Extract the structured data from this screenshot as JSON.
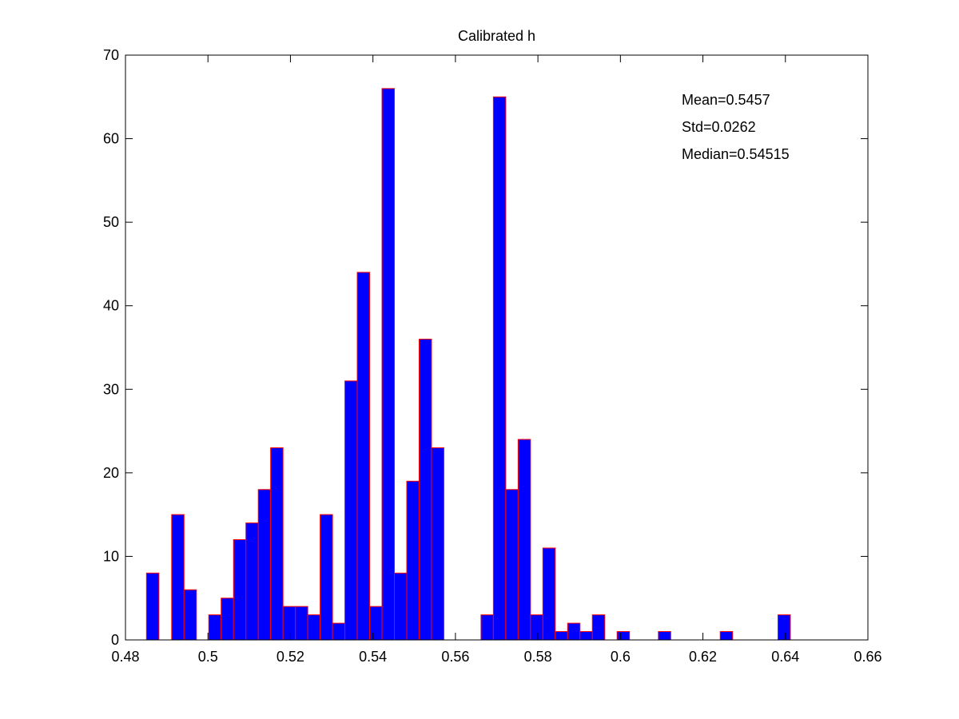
{
  "chart_data": {
    "type": "bar",
    "title": "Calibrated h",
    "xlabel": "",
    "ylabel": "",
    "xlim": [
      0.48,
      0.66
    ],
    "ylim": [
      0,
      70
    ],
    "x_ticks": [
      "0.48",
      "0.5",
      "0.52",
      "0.54",
      "0.56",
      "0.58",
      "0.6",
      "0.62",
      "0.64",
      "0.66"
    ],
    "y_ticks": [
      "0",
      "10",
      "20",
      "30",
      "40",
      "50",
      "60",
      "70"
    ],
    "grid": false,
    "bin_width": 0.003,
    "bins": [
      {
        "x": 0.4866,
        "count": 8
      },
      {
        "x": 0.4927,
        "count": 15
      },
      {
        "x": 0.4957,
        "count": 6
      },
      {
        "x": 0.5017,
        "count": 3
      },
      {
        "x": 0.5047,
        "count": 5
      },
      {
        "x": 0.5077,
        "count": 12
      },
      {
        "x": 0.5107,
        "count": 14
      },
      {
        "x": 0.5137,
        "count": 18
      },
      {
        "x": 0.5167,
        "count": 23
      },
      {
        "x": 0.5197,
        "count": 4
      },
      {
        "x": 0.5227,
        "count": 4
      },
      {
        "x": 0.5257,
        "count": 3
      },
      {
        "x": 0.5287,
        "count": 15
      },
      {
        "x": 0.5317,
        "count": 2
      },
      {
        "x": 0.5347,
        "count": 31
      },
      {
        "x": 0.5377,
        "count": 44
      },
      {
        "x": 0.5407,
        "count": 4
      },
      {
        "x": 0.5437,
        "count": 66
      },
      {
        "x": 0.5467,
        "count": 8
      },
      {
        "x": 0.5497,
        "count": 19
      },
      {
        "x": 0.5527,
        "count": 36
      },
      {
        "x": 0.5557,
        "count": 23
      },
      {
        "x": 0.5677,
        "count": 3
      },
      {
        "x": 0.5707,
        "count": 65
      },
      {
        "x": 0.5737,
        "count": 18
      },
      {
        "x": 0.5767,
        "count": 24
      },
      {
        "x": 0.5797,
        "count": 3
      },
      {
        "x": 0.5827,
        "count": 11
      },
      {
        "x": 0.5857,
        "count": 1
      },
      {
        "x": 0.5887,
        "count": 2
      },
      {
        "x": 0.5917,
        "count": 1
      },
      {
        "x": 0.5947,
        "count": 3
      },
      {
        "x": 0.6007,
        "count": 1
      },
      {
        "x": 0.6107,
        "count": 1
      },
      {
        "x": 0.6257,
        "count": 1
      },
      {
        "x": 0.6397,
        "count": 3
      }
    ],
    "annotations": [
      "Mean=0.5457",
      "Std=0.0262",
      "Median=0.54515"
    ],
    "bar_fill": "#0000ff",
    "bar_edge": "#ff0000"
  }
}
